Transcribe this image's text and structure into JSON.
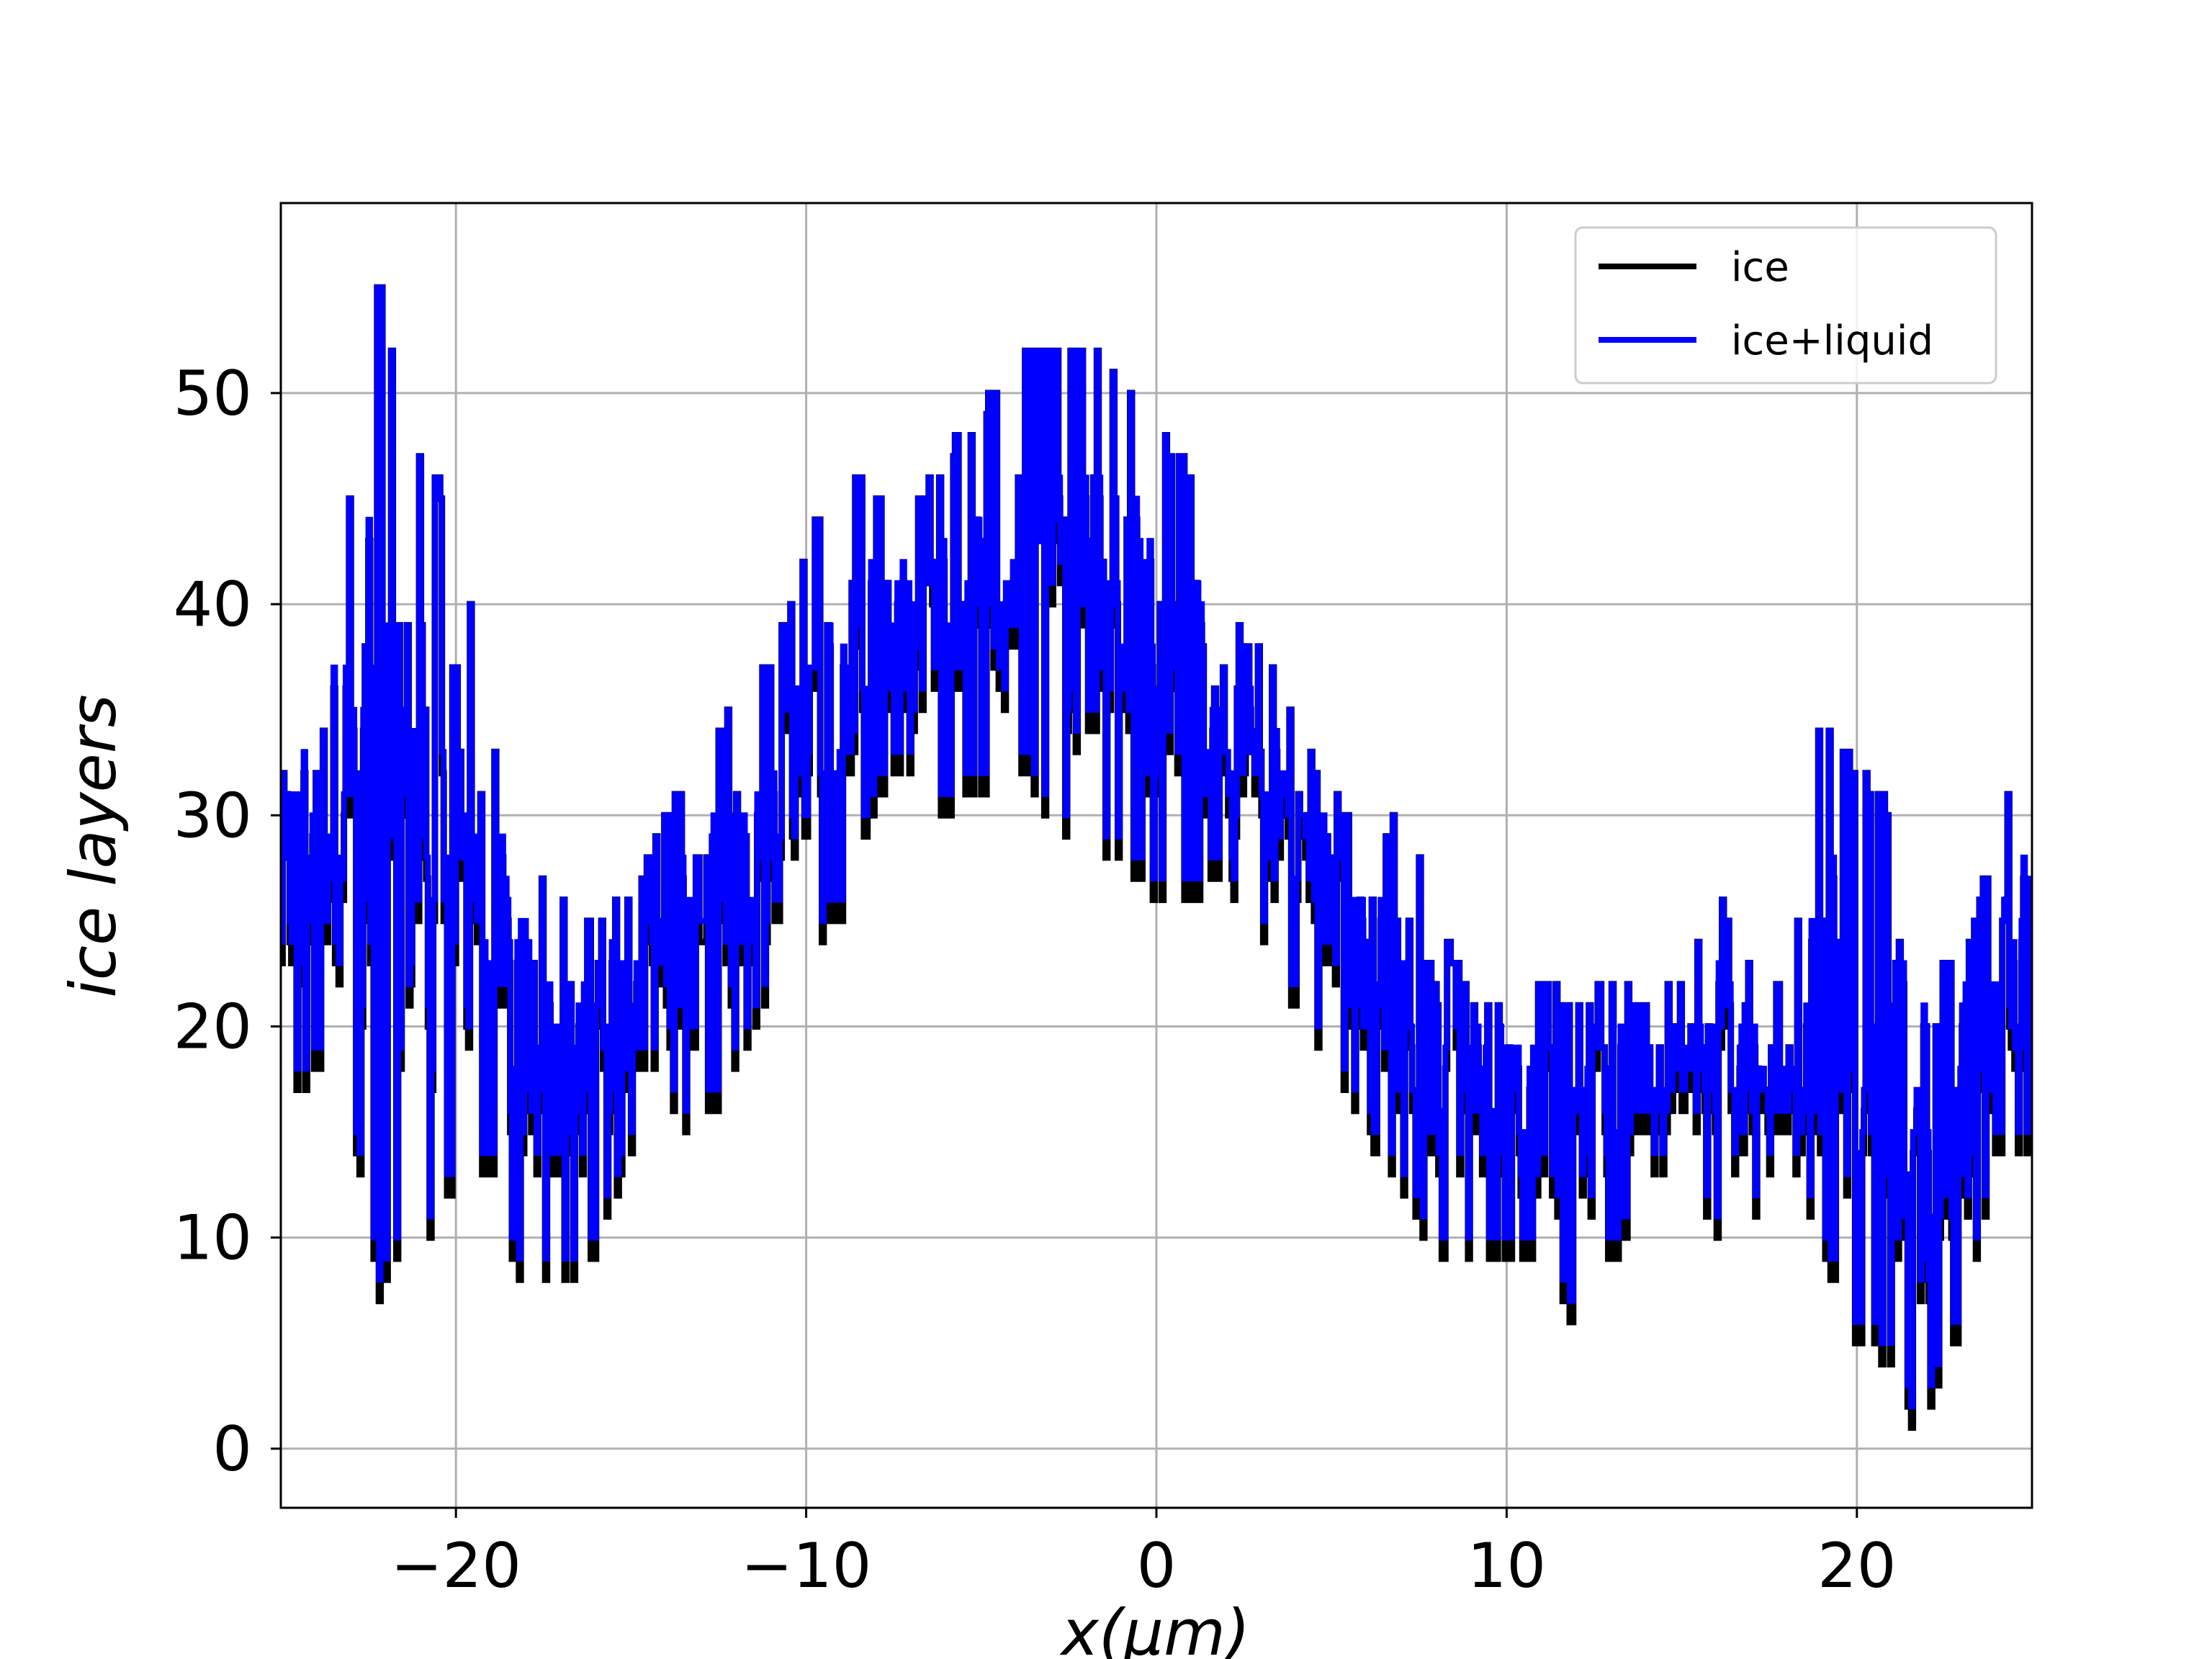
{
  "chart_data": {
    "type": "line",
    "title": "",
    "xlabel": "x(μm)",
    "ylabel": "ice layers",
    "xlim": [
      -25,
      25
    ],
    "ylim": [
      -2.8,
      59
    ],
    "xticks": [
      -20,
      -10,
      0,
      10,
      20
    ],
    "xtick_labels": [
      "−20",
      "−10",
      "0",
      "10",
      "20"
    ],
    "yticks": [
      0,
      10,
      20,
      30,
      40,
      50
    ],
    "ytick_labels": [
      "0",
      "10",
      "20",
      "30",
      "40",
      "50"
    ],
    "grid": true,
    "legend_position": "upper right",
    "x": [
      -25,
      -24,
      -23,
      -22.2,
      -21.5,
      -21,
      -20,
      -19,
      -18.2,
      -17.5,
      -16.3,
      -15,
      -14,
      -13,
      -12,
      -11,
      -10,
      -9,
      -8,
      -7,
      -6,
      -5,
      -4,
      -3,
      -2,
      -1,
      0,
      1,
      2,
      3,
      4,
      5,
      6,
      7,
      8,
      9,
      10,
      11,
      11.8,
      13,
      14,
      15,
      16,
      17,
      18,
      19,
      20,
      21,
      21.8,
      22.5,
      23,
      24,
      25
    ],
    "series": [
      {
        "name": "ice",
        "color": "#000000",
        "mean": [
          25,
          29,
          31,
          30,
          30,
          28,
          27,
          23,
          20,
          18,
          18,
          21,
          22,
          24,
          26,
          28,
          31,
          34,
          36,
          37,
          38,
          39,
          40,
          40,
          40,
          39,
          38,
          35,
          33,
          31,
          29,
          26,
          23,
          20,
          18,
          17,
          17,
          16,
          16,
          16,
          16,
          17,
          17,
          16,
          16,
          17,
          19,
          17,
          14,
          16,
          18,
          19,
          22
        ],
        "upper": [
          36,
          38,
          45,
          56,
          48,
          47,
          44,
          34,
          30,
          27,
          25,
          26,
          30,
          33,
          35,
          37,
          43,
          47,
          45,
          44,
          47,
          49,
          52,
          52,
          52,
          51,
          48,
          46,
          39,
          38,
          34,
          31,
          28,
          30,
          25,
          21,
          21,
          22,
          21,
          22,
          21,
          22,
          26,
          23,
          21,
          35,
          32,
          30,
          25,
          23,
          23,
          29,
          34
        ],
        "lower": [
          16,
          18,
          16,
          7,
          10,
          9,
          13,
          13,
          8,
          8,
          8,
          14,
          16,
          15,
          18,
          22,
          24,
          25,
          31,
          32,
          30,
          31,
          33,
          29,
          29,
          28,
          26,
          26,
          27,
          24,
          21,
          18,
          15,
          12,
          9,
          9,
          9,
          9,
          6,
          9,
          12,
          15,
          10,
          11,
          14,
          9,
          5,
          4,
          0,
          4,
          5,
          14,
          14
        ]
      },
      {
        "name": "ice+liquid",
        "color": "#0000ff",
        "mean": [
          26,
          30,
          32,
          31,
          31,
          29,
          28,
          24,
          21,
          19,
          19,
          22,
          23,
          25,
          27,
          29,
          32,
          35,
          37,
          38,
          39,
          40,
          41,
          41,
          41,
          40,
          39,
          36,
          34,
          32,
          30,
          27,
          24,
          21,
          19,
          18,
          18,
          17,
          17,
          17,
          17,
          18,
          18,
          17,
          17,
          18,
          20,
          18,
          15,
          17,
          19,
          20,
          23
        ],
        "upper": [
          36,
          38,
          45,
          56,
          48,
          47,
          44,
          34,
          30,
          27,
          25,
          26,
          30,
          33,
          35,
          37,
          43,
          47,
          45,
          44,
          47,
          49,
          52,
          52,
          52,
          51,
          48,
          46,
          39,
          38,
          34,
          31,
          28,
          30,
          25,
          21,
          21,
          22,
          21,
          22,
          21,
          22,
          26,
          23,
          21,
          35,
          32,
          30,
          25,
          23,
          23,
          29,
          34
        ],
        "lower": [
          17,
          19,
          17,
          8,
          11,
          10,
          14,
          14,
          9,
          9,
          9,
          15,
          17,
          16,
          19,
          23,
          25,
          26,
          32,
          33,
          31,
          32,
          34,
          30,
          30,
          29,
          27,
          27,
          28,
          25,
          22,
          19,
          16,
          13,
          10,
          10,
          10,
          10,
          7,
          10,
          13,
          16,
          11,
          12,
          15,
          10,
          6,
          5,
          1,
          5,
          6,
          15,
          15
        ]
      }
    ]
  }
}
